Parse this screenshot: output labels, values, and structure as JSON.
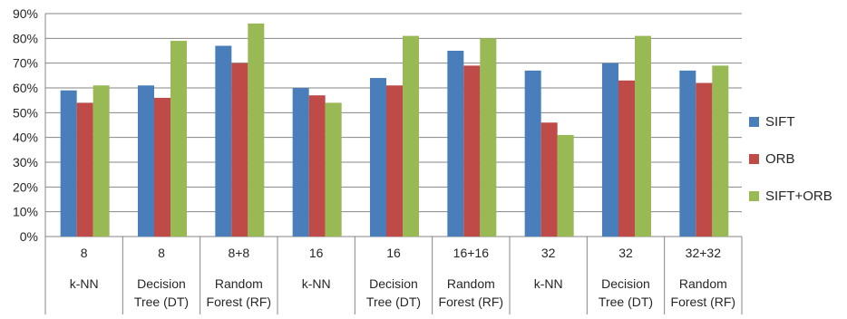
{
  "chart_data": {
    "type": "bar",
    "title": "",
    "xlabel": "",
    "ylabel": "",
    "ylim": [
      0,
      90
    ],
    "yticks": [
      "0%",
      "10%",
      "20%",
      "30%",
      "40%",
      "50%",
      "60%",
      "70%",
      "80%",
      "90%"
    ],
    "categories": [
      {
        "size": "8",
        "classifier": [
          "k-NN"
        ]
      },
      {
        "size": "8",
        "classifier": [
          "Decision",
          "Tree (DT)"
        ]
      },
      {
        "size": "8+8",
        "classifier": [
          "Random",
          "Forest (RF)"
        ]
      },
      {
        "size": "16",
        "classifier": [
          "k-NN"
        ]
      },
      {
        "size": "16",
        "classifier": [
          "Decision",
          "Tree (DT)"
        ]
      },
      {
        "size": "16+16",
        "classifier": [
          "Random",
          "Forest (RF)"
        ]
      },
      {
        "size": "32",
        "classifier": [
          "k-NN"
        ]
      },
      {
        "size": "32",
        "classifier": [
          "Decision",
          "Tree (DT)"
        ]
      },
      {
        "size": "32+32",
        "classifier": [
          "Random",
          "Forest (RF)"
        ]
      }
    ],
    "series": [
      {
        "name": "SIFT",
        "color": "#4a7ebb",
        "values": [
          59,
          61,
          77,
          60,
          64,
          75,
          67,
          70,
          67
        ]
      },
      {
        "name": "ORB",
        "color": "#be4b48",
        "values": [
          54,
          56,
          70,
          57,
          61,
          69,
          46,
          63,
          62
        ]
      },
      {
        "name": "SIFT+ORB",
        "color": "#98b954",
        "values": [
          61,
          79,
          86,
          54,
          81,
          80,
          41,
          81,
          69
        ]
      }
    ],
    "grid": true,
    "legend_position": "right"
  }
}
